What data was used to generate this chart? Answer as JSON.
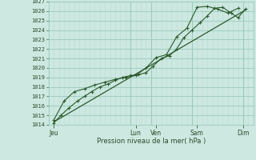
{
  "xlabel": "Pression niveau de la mer( hPa )",
  "bg_color": "#cce8e0",
  "grid_major_color": "#99ccbb",
  "grid_minor_color": "#bbddd5",
  "line_color": "#2d5a2d",
  "ylim": [
    1014,
    1027
  ],
  "yticks": [
    1014,
    1015,
    1016,
    1017,
    1018,
    1019,
    1020,
    1021,
    1022,
    1023,
    1024,
    1025,
    1026,
    1027
  ],
  "xlim": [
    0,
    20
  ],
  "day_labels": [
    "Jeu",
    "Lun",
    "Ven",
    "Sam",
    "Dim"
  ],
  "day_positions": [
    0.5,
    8.5,
    10.5,
    14.5,
    19.0
  ],
  "vline_positions": [
    8,
    10,
    14,
    19
  ],
  "line1_x": [
    0.5,
    1.2,
    2.0,
    2.8,
    3.5,
    4.2,
    5.0,
    5.8,
    6.5,
    7.2,
    8.0,
    8.8,
    9.5,
    10.2,
    11.0,
    11.8,
    12.5,
    13.2,
    14.0,
    14.8,
    15.5,
    16.2,
    17.0,
    17.8,
    18.5,
    19.2
  ],
  "line1_y": [
    1014.2,
    1015.0,
    1015.8,
    1016.5,
    1017.0,
    1017.5,
    1018.0,
    1018.3,
    1018.7,
    1019.0,
    1019.2,
    1019.3,
    1019.5,
    1020.2,
    1021.0,
    1021.3,
    1022.0,
    1023.2,
    1024.0,
    1024.8,
    1025.5,
    1026.3,
    1026.4,
    1025.8,
    1025.3,
    1026.2
  ],
  "line2_x": [
    0.5,
    1.5,
    2.5,
    3.5,
    4.5,
    5.5,
    6.5,
    7.5,
    8.5,
    9.5,
    10.5,
    11.5,
    12.5,
    13.5,
    14.5,
    15.5,
    16.5,
    17.5,
    18.5
  ],
  "line2_y": [
    1014.5,
    1016.5,
    1017.5,
    1017.8,
    1018.2,
    1018.5,
    1018.8,
    1019.0,
    1019.2,
    1020.0,
    1021.1,
    1021.4,
    1023.3,
    1024.2,
    1026.4,
    1026.5,
    1026.2,
    1025.8,
    1026.3
  ],
  "line3_x": [
    0.5,
    19.2
  ],
  "line3_y": [
    1014.3,
    1026.1
  ]
}
